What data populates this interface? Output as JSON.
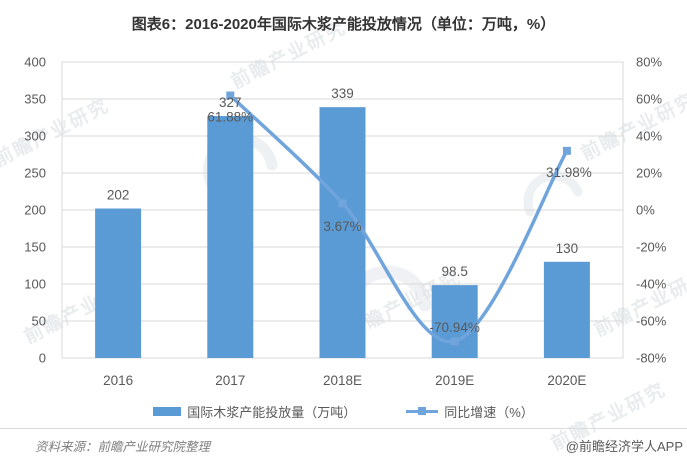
{
  "title": "图表6：2016-2020年国际木浆产能投放情况（单位：万吨，%）",
  "chart_data": {
    "type": "combo-bar-line",
    "categories": [
      "2016",
      "2017",
      "2018E",
      "2019E",
      "2020E"
    ],
    "series": [
      {
        "name": "国际木浆产能投放量（万吨）",
        "type": "bar",
        "values": [
          202,
          327,
          339,
          98.5,
          130
        ],
        "labels": [
          "202",
          "327",
          "339",
          "98.5",
          "130"
        ],
        "axis": "left"
      },
      {
        "name": "同比增速（%）",
        "type": "line",
        "values": [
          null,
          61.88,
          3.67,
          -70.94,
          31.98
        ],
        "labels": [
          null,
          "61.88%",
          "3.67%",
          "-70.94%",
          "31.98%"
        ],
        "label_offsets": [
          null,
          [
            0,
            22
          ],
          [
            0,
            24
          ],
          [
            0,
            -13
          ],
          [
            2,
            22
          ]
        ],
        "axis": "right",
        "smooth": true,
        "marker": "square"
      }
    ],
    "left_axis": {
      "min": 0,
      "max": 400,
      "step": 50,
      "ticks": [
        "400",
        "350",
        "300",
        "250",
        "200",
        "150",
        "100",
        "50",
        "0"
      ]
    },
    "right_axis": {
      "min": -80,
      "max": 80,
      "step": 20,
      "ticks": [
        "80%",
        "60%",
        "40%",
        "20%",
        "0%",
        "-20%",
        "-40%",
        "-60%",
        "-80%"
      ]
    },
    "grid": true,
    "legend_position": "bottom"
  },
  "legend": {
    "items": [
      {
        "label": "国际木浆产能投放量（万吨）",
        "swatch": "bar"
      },
      {
        "label": "同比增速（%）",
        "swatch": "line-marker"
      }
    ]
  },
  "footer": {
    "source": "资料来源：前瞻产业研究院整理",
    "brand": "@前瞻经济学人APP"
  },
  "watermark": {
    "text": "前瞻产业研究"
  },
  "colors": {
    "bar": "#5B9BD5",
    "line": "#6FA4DC",
    "grid": "#D9D9D9",
    "plot_border": "#D9D9D9",
    "axis_text": "#595959",
    "data_label_text": "#595959",
    "title_text": "#333333"
  }
}
